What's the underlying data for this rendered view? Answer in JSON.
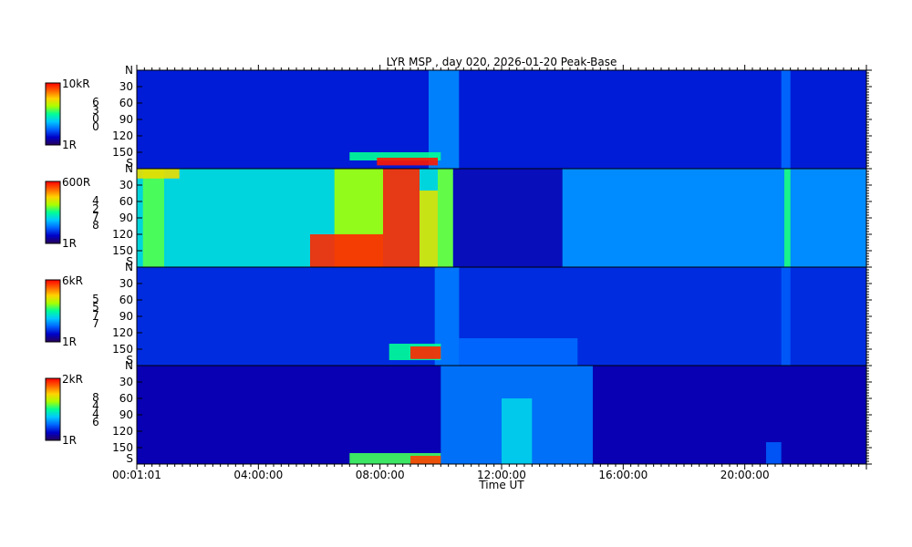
{
  "chart_data": {
    "type": "heatmap",
    "title": "LYR MSP , day 020, 2026-01-20 Peak-Base",
    "xlabel": "Time UT",
    "x_ticks": [
      "00:01:01",
      "04:00:00",
      "08:00:00",
      "12:00:00",
      "16:00:00",
      "20:00:00"
    ],
    "x_range_hours": [
      0,
      24
    ],
    "y_ticks": [
      "N",
      "30",
      "60",
      "90",
      "120",
      "150",
      "S"
    ],
    "y_range_deg": [
      0,
      180
    ],
    "colormap": [
      "#280058",
      "#0000c8",
      "#0064ff",
      "#00c8ff",
      "#00ff96",
      "#aaff00",
      "#ffd200",
      "#ff6400",
      "#ff0000"
    ],
    "panels": [
      {
        "name": "panel-1",
        "colorbar_max": "10kR",
        "colorbar_min": "1R",
        "wavelength_digits": [
          "6",
          "3",
          "0",
          "0"
        ],
        "background": 0.16,
        "features": [
          {
            "t0": 9.6,
            "t1": 10.6,
            "el0": 0,
            "el1": 180,
            "level": 0.3
          },
          {
            "t0": 21.2,
            "t1": 21.5,
            "el0": 0,
            "el1": 180,
            "level": 0.26
          },
          {
            "t0": 7.0,
            "t1": 10.0,
            "el0": 150,
            "el1": 165,
            "level": 0.5
          },
          {
            "t0": 7.9,
            "t1": 9.9,
            "el0": 160,
            "el1": 174,
            "level": 0.97
          }
        ]
      },
      {
        "name": "panel-2",
        "colorbar_max": "600R",
        "colorbar_min": "1R",
        "wavelength_digits": [
          "4",
          "2",
          "7",
          "8"
        ],
        "background": 0.3,
        "features": [
          {
            "t0": 0.0,
            "t1": 10.4,
            "el0": 0,
            "el1": 180,
            "level": 0.42
          },
          {
            "t0": 10.4,
            "t1": 14.0,
            "el0": 0,
            "el1": 180,
            "level": 0.1
          },
          {
            "t0": 0.2,
            "t1": 0.9,
            "el0": 0,
            "el1": 180,
            "level": 0.56
          },
          {
            "t0": 0.0,
            "t1": 1.4,
            "el0": 0,
            "el1": 18,
            "level": 0.72
          },
          {
            "t0": 6.5,
            "t1": 8.1,
            "el0": 0,
            "el1": 180,
            "level": 0.62
          },
          {
            "t0": 8.1,
            "t1": 9.3,
            "el0": 0,
            "el1": 180,
            "level": 0.95
          },
          {
            "t0": 9.3,
            "t1": 9.9,
            "el0": 40,
            "el1": 180,
            "level": 0.7
          },
          {
            "t0": 5.7,
            "t1": 8.1,
            "el0": 120,
            "el1": 180,
            "level": 0.95
          },
          {
            "t0": 9.9,
            "t1": 10.4,
            "el0": 0,
            "el1": 180,
            "level": 0.58
          },
          {
            "t0": 21.3,
            "t1": 21.5,
            "el0": 0,
            "el1": 180,
            "level": 0.52
          }
        ]
      },
      {
        "name": "panel-3",
        "colorbar_max": "6kR",
        "colorbar_min": "1R",
        "wavelength_digits": [
          "5",
          "5",
          "7",
          "7"
        ],
        "background": 0.18,
        "features": [
          {
            "t0": 9.8,
            "t1": 10.6,
            "el0": 0,
            "el1": 180,
            "level": 0.28
          },
          {
            "t0": 10.6,
            "t1": 14.5,
            "el0": 130,
            "el1": 180,
            "level": 0.26
          },
          {
            "t0": 21.2,
            "t1": 21.5,
            "el0": 0,
            "el1": 180,
            "level": 0.24
          },
          {
            "t0": 8.3,
            "t1": 10.0,
            "el0": 140,
            "el1": 170,
            "level": 0.5
          },
          {
            "t0": 9.0,
            "t1": 10.0,
            "el0": 145,
            "el1": 168,
            "level": 0.95
          }
        ]
      },
      {
        "name": "panel-4",
        "colorbar_max": "2kR",
        "colorbar_min": "1R",
        "wavelength_digits": [
          "8",
          "4",
          "4",
          "6"
        ],
        "background": 0.1,
        "features": [
          {
            "t0": 10.0,
            "t1": 15.0,
            "el0": 0,
            "el1": 180,
            "level": 0.28
          },
          {
            "t0": 12.0,
            "t1": 13.0,
            "el0": 60,
            "el1": 180,
            "level": 0.4
          },
          {
            "t0": 20.7,
            "t1": 21.2,
            "el0": 140,
            "el1": 180,
            "level": 0.24
          },
          {
            "t0": 7.0,
            "t1": 10.0,
            "el0": 160,
            "el1": 180,
            "level": 0.55
          },
          {
            "t0": 9.0,
            "t1": 10.0,
            "el0": 165,
            "el1": 180,
            "level": 0.92
          }
        ]
      }
    ]
  }
}
